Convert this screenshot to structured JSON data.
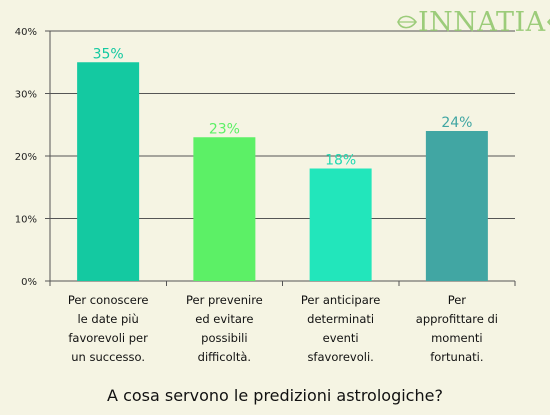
{
  "logo": {
    "text": "INNATIA"
  },
  "chart_data": {
    "type": "bar",
    "title": "A cosa servono le predizioni astrologiche?",
    "categories": [
      "Per conoscere\nle date più\nfavorevoli per\nun successo.",
      "Per prevenire\ned evitare\npossibili\ndifficoltà.",
      "Per anticipare\ndeterminati\neventi\nsfavorevoli.",
      "Per\napprofittare di\nmomenti\nfortunati."
    ],
    "values": [
      35,
      23,
      18,
      24
    ],
    "value_labels": [
      "35%",
      "23%",
      "18%",
      "24%"
    ],
    "bar_colors": [
      "#14c9a1",
      "#5cf066",
      "#22e6bb",
      "#41a6a3"
    ],
    "label_colors": [
      "#14c9a1",
      "#5cf066",
      "#22d9b1",
      "#41a6a3"
    ],
    "ylim": [
      0,
      40
    ],
    "yticks": [
      0,
      10,
      20,
      30,
      40
    ],
    "ytick_labels": [
      "0%",
      "10%",
      "20%",
      "30%",
      "40%"
    ],
    "grid": true
  }
}
